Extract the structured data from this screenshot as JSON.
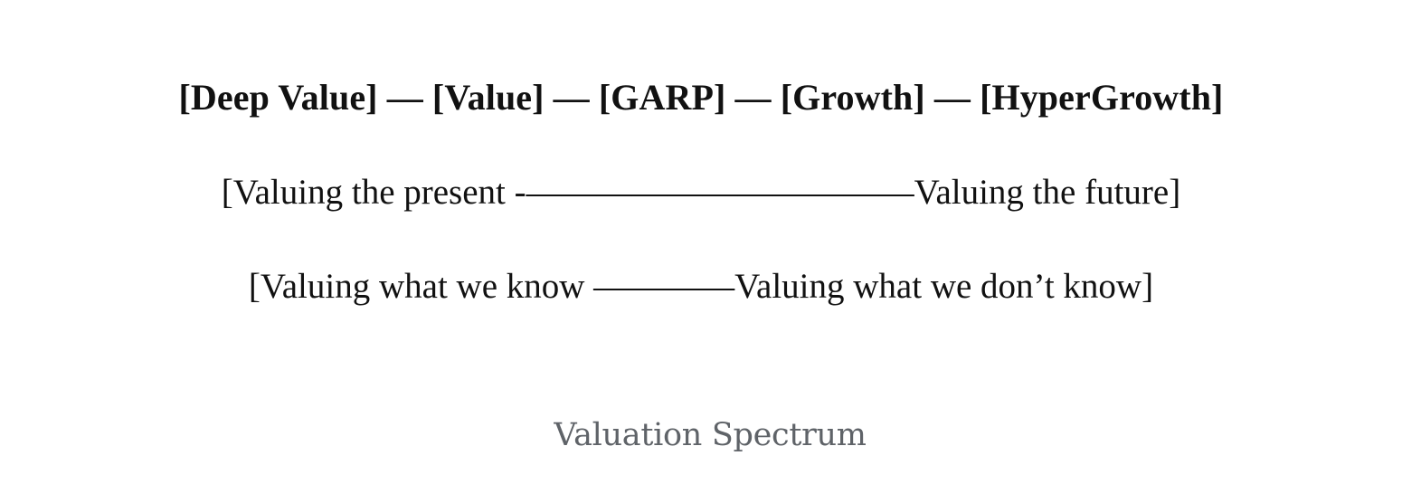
{
  "figure": {
    "spectrum_line": "[Deep Value] — [Value] — [GARP] — [Growth] — [HyperGrowth]",
    "present_future_line": "[Valuing the present -———————————Valuing the future]",
    "known_unknown_line": "[Valuing what we know ————Valuing what we don’t know]",
    "caption": "Valuation Spectrum"
  }
}
